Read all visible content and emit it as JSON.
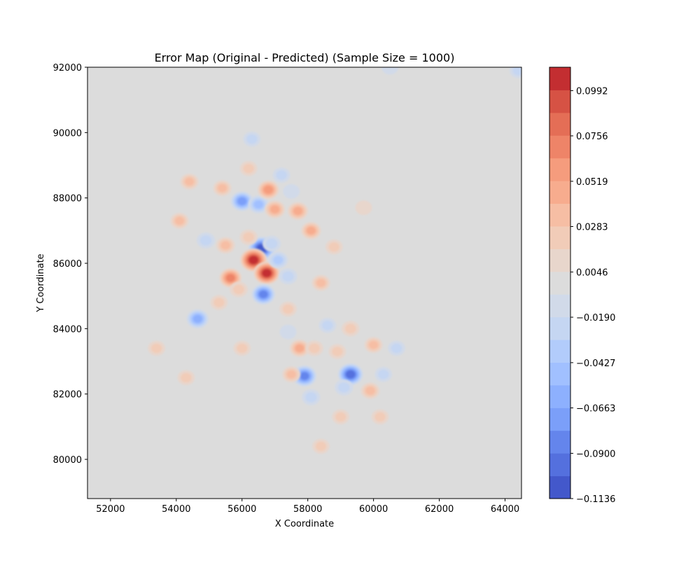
{
  "chart_data": {
    "type": "heatmap",
    "title": "Error Map (Original - Predicted) (Sample Size = 1000)",
    "xlabel": "X Coordinate",
    "ylabel": "Y Coordinate",
    "xlim": [
      51300,
      64500
    ],
    "ylim": [
      78800,
      92000
    ],
    "x_ticks": [
      52000,
      54000,
      56000,
      58000,
      60000,
      62000,
      64000
    ],
    "y_ticks": [
      80000,
      82000,
      84000,
      86000,
      88000,
      90000,
      92000
    ],
    "grid": false,
    "background_color": "#dcdcdc",
    "colormap": "coolwarm",
    "colorbar": {
      "vmin": -0.1136,
      "vmax": 0.1114,
      "ticks": [
        -0.1136,
        -0.09,
        -0.0663,
        -0.0427,
        -0.019,
        0.0046,
        0.0283,
        0.0519,
        0.0756,
        0.0992
      ],
      "tick_labels": [
        "−0.1136",
        "−0.0900",
        "−0.0663",
        "−0.0427",
        "−0.0190",
        "0.0046",
        "0.0283",
        "0.0519",
        "0.0756",
        "0.0992"
      ],
      "levels": [
        {
          "value": -0.1077,
          "color": "#4358cb"
        },
        {
          "value": -0.0959,
          "color": "#5470de"
        },
        {
          "value": -0.0841,
          "color": "#6485ec"
        },
        {
          "value": -0.0722,
          "color": "#7b9ff9"
        },
        {
          "value": -0.0604,
          "color": "#8db0fe"
        },
        {
          "value": -0.0486,
          "color": "#a1c0ff"
        },
        {
          "value": -0.0368,
          "color": "#b2ccfb"
        },
        {
          "value": -0.0249,
          "color": "#c5d6f2"
        },
        {
          "value": -0.0131,
          "color": "#d1dae9"
        },
        {
          "value": -0.0013,
          "color": "#dcdcdc"
        },
        {
          "value": 0.0105,
          "color": "#e8d6cc"
        },
        {
          "value": 0.0224,
          "color": "#f1ccb8"
        },
        {
          "value": 0.0342,
          "color": "#f6bea4"
        },
        {
          "value": 0.046,
          "color": "#f7ac8e"
        },
        {
          "value": 0.0578,
          "color": "#f59c7d"
        },
        {
          "value": 0.0697,
          "color": "#ee8468"
        },
        {
          "value": 0.0815,
          "color": "#e46e56"
        },
        {
          "value": 0.0933,
          "color": "#d65244"
        },
        {
          "value": 0.1051,
          "color": "#c32e31"
        }
      ]
    },
    "blobs": [
      {
        "x": 56600,
        "y": 86450,
        "v": -0.113
      },
      {
        "x": 56350,
        "y": 86100,
        "v": 0.112
      },
      {
        "x": 56750,
        "y": 85700,
        "v": 0.105
      },
      {
        "x": 55650,
        "y": 85550,
        "v": 0.07
      },
      {
        "x": 56650,
        "y": 85050,
        "v": -0.08
      },
      {
        "x": 57900,
        "y": 82550,
        "v": -0.085
      },
      {
        "x": 59300,
        "y": 82600,
        "v": -0.095
      },
      {
        "x": 56000,
        "y": 87900,
        "v": -0.07
      },
      {
        "x": 56500,
        "y": 87800,
        "v": -0.05
      },
      {
        "x": 56800,
        "y": 88250,
        "v": 0.06
      },
      {
        "x": 57000,
        "y": 87650,
        "v": 0.05
      },
      {
        "x": 57700,
        "y": 87600,
        "v": 0.05
      },
      {
        "x": 58100,
        "y": 87000,
        "v": 0.045
      },
      {
        "x": 54650,
        "y": 84300,
        "v": -0.065
      },
      {
        "x": 57750,
        "y": 83400,
        "v": 0.045
      },
      {
        "x": 59900,
        "y": 82100,
        "v": 0.035
      },
      {
        "x": 55500,
        "y": 86550,
        "v": 0.035
      },
      {
        "x": 55400,
        "y": 88300,
        "v": 0.03
      },
      {
        "x": 54400,
        "y": 88500,
        "v": 0.03
      },
      {
        "x": 54100,
        "y": 87300,
        "v": 0.03
      },
      {
        "x": 58400,
        "y": 85400,
        "v": 0.03
      },
      {
        "x": 58200,
        "y": 83400,
        "v": 0.025
      },
      {
        "x": 59300,
        "y": 84000,
        "v": 0.025
      },
      {
        "x": 60000,
        "y": 83500,
        "v": 0.03
      },
      {
        "x": 57500,
        "y": 82600,
        "v": 0.03
      },
      {
        "x": 60200,
        "y": 81300,
        "v": 0.02
      },
      {
        "x": 59000,
        "y": 81300,
        "v": 0.02
      },
      {
        "x": 58400,
        "y": 80400,
        "v": 0.02
      },
      {
        "x": 53400,
        "y": 83400,
        "v": 0.02
      },
      {
        "x": 54300,
        "y": 82500,
        "v": 0.02
      },
      {
        "x": 56000,
        "y": 83400,
        "v": 0.02
      },
      {
        "x": 57400,
        "y": 85600,
        "v": -0.03
      },
      {
        "x": 57100,
        "y": 86100,
        "v": -0.04
      },
      {
        "x": 55300,
        "y": 84800,
        "v": 0.02
      },
      {
        "x": 56300,
        "y": 89800,
        "v": -0.02
      },
      {
        "x": 54900,
        "y": 86700,
        "v": -0.03
      },
      {
        "x": 55900,
        "y": 85200,
        "v": 0.025
      },
      {
        "x": 58800,
        "y": 86500,
        "v": 0.02
      },
      {
        "x": 59700,
        "y": 87700,
        "v": 0.015
      },
      {
        "x": 60700,
        "y": 83400,
        "v": -0.02
      },
      {
        "x": 60300,
        "y": 82600,
        "v": -0.02
      },
      {
        "x": 58900,
        "y": 83300,
        "v": 0.02
      },
      {
        "x": 57400,
        "y": 84600,
        "v": 0.02
      },
      {
        "x": 56200,
        "y": 88900,
        "v": 0.02
      },
      {
        "x": 57200,
        "y": 88700,
        "v": -0.02
      },
      {
        "x": 57500,
        "y": 88200,
        "v": -0.015
      },
      {
        "x": 58100,
        "y": 81900,
        "v": -0.03
      },
      {
        "x": 58600,
        "y": 84100,
        "v": -0.02
      },
      {
        "x": 57400,
        "y": 83900,
        "v": -0.015
      },
      {
        "x": 59100,
        "y": 82200,
        "v": -0.03
      },
      {
        "x": 64400,
        "y": 91900,
        "v": -0.02
      },
      {
        "x": 60500,
        "y": 92000,
        "v": -0.015
      },
      {
        "x": 56900,
        "y": 86600,
        "v": -0.03
      },
      {
        "x": 56200,
        "y": 86800,
        "v": 0.025
      }
    ]
  }
}
